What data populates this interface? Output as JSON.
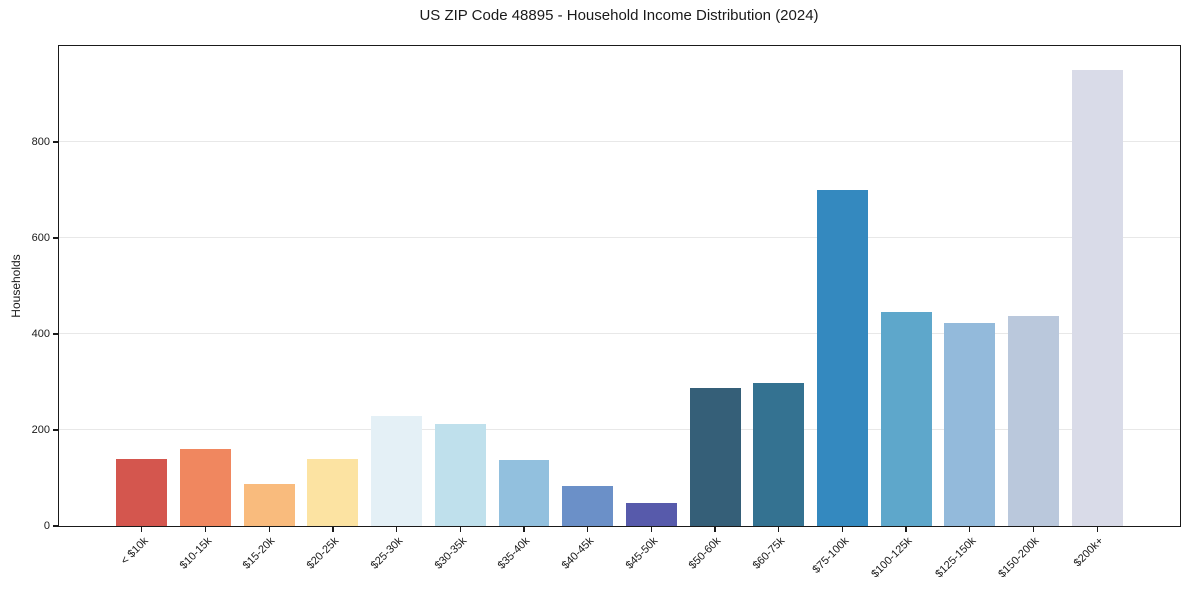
{
  "chart_data": {
    "type": "bar",
    "title": "US ZIP Code 48895 - Household Income Distribution (2024)",
    "xlabel": "",
    "ylabel": "Households",
    "categories": [
      "< $10k",
      "$10-15k",
      "$15-20k",
      "$20-25k",
      "$25-30k",
      "$30-35k",
      "$35-40k",
      "$40-45k",
      "$45-50k",
      "$50-60k",
      "$60-75k",
      "$75-100k",
      "$100-125k",
      "$125-150k",
      "$150-200k",
      "$200k+"
    ],
    "values": [
      140,
      160,
      87,
      140,
      230,
      212,
      138,
      83,
      48,
      287,
      297,
      700,
      445,
      423,
      437,
      950
    ],
    "bar_colors": [
      "#d4564e",
      "#f0875f",
      "#f9bb7d",
      "#fce3a2",
      "#e4f0f6",
      "#bfe0ec",
      "#92c0de",
      "#6b90c8",
      "#575aab",
      "#355f78",
      "#347291",
      "#3489bf",
      "#5ea7cb",
      "#93badb",
      "#bac8dc",
      "#d9dbe8"
    ],
    "yticks": [
      0,
      200,
      400,
      600,
      800
    ],
    "ylim": [
      0,
      1000
    ],
    "x_tick_rotation": 45,
    "grid": "horizontal",
    "legend": "none"
  },
  "colors": {
    "background": "#ffffff",
    "gridline": "#e8e8e8",
    "spine": "#1a1a1a",
    "text": "#1a1a1a"
  }
}
